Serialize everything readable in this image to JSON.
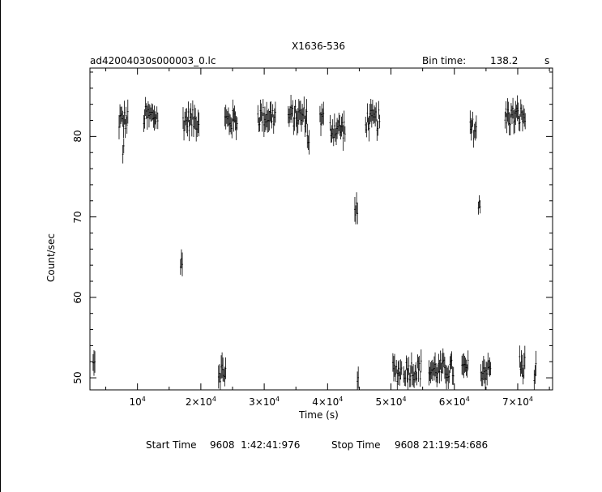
{
  "chart_data": {
    "type": "scatter",
    "title": "X1636-536",
    "file_label": "ad42004030s000003_0.lc",
    "bin_time_label": "Bin time:",
    "bin_time_value": "138.2",
    "bin_time_unit": "s",
    "xlabel": "Time (s)",
    "ylabel": "Count/sec",
    "xlim": [
      2500,
      75500
    ],
    "ylim": [
      48.5,
      88.5
    ],
    "x_ticks": [
      {
        "value": 10000,
        "label": "10",
        "exp": "4"
      },
      {
        "value": 20000,
        "label": "2×10",
        "exp": "4"
      },
      {
        "value": 30000,
        "label": "3×10",
        "exp": "4"
      },
      {
        "value": 40000,
        "label": "4×10",
        "exp": "4"
      },
      {
        "value": 50000,
        "label": "5×10",
        "exp": "4"
      },
      {
        "value": 60000,
        "label": "6×10",
        "exp": "4"
      },
      {
        "value": 70000,
        "label": "7×10",
        "exp": "4"
      }
    ],
    "y_ticks": [
      {
        "value": 50,
        "label": "50"
      },
      {
        "value": 60,
        "label": "60"
      },
      {
        "value": 70,
        "label": "70"
      },
      {
        "value": 80,
        "label": "80"
      }
    ],
    "segments": [
      {
        "x": [
          3000,
          3300
        ],
        "y": 51.5
      },
      {
        "x": [
          7100,
          8500
        ],
        "y": 82
      },
      {
        "x": [
          7700,
          7900
        ],
        "y": 78
      },
      {
        "x": [
          11000,
          13300
        ],
        "y": 82.5
      },
      {
        "x": [
          16800,
          17100
        ],
        "y": 64
      },
      {
        "x": [
          17200,
          19800
        ],
        "y": 82
      },
      {
        "x": [
          22800,
          24000
        ],
        "y": 50.8
      },
      {
        "x": [
          23800,
          25800
        ],
        "y": 82
      },
      {
        "x": [
          29000,
          31800
        ],
        "y": 82.5
      },
      {
        "x": [
          33800,
          36800
        ],
        "y": 82.5
      },
      {
        "x": [
          36800,
          37200
        ],
        "y": 80
      },
      {
        "x": [
          38800,
          39400
        ],
        "y": 82
      },
      {
        "x": [
          40400,
          42800
        ],
        "y": 81
      },
      {
        "x": [
          44300,
          44800
        ],
        "y": 70.5
      },
      {
        "x": [
          44700,
          44900
        ],
        "y": 49.5
      },
      {
        "x": [
          46000,
          48300
        ],
        "y": 82
      },
      {
        "x": [
          50300,
          51800
        ],
        "y": 50.8
      },
      {
        "x": [
          52000,
          54800
        ],
        "y": 51
      },
      {
        "x": [
          56000,
          60000
        ],
        "y": 51
      },
      {
        "x": [
          61200,
          62200
        ],
        "y": 51
      },
      {
        "x": [
          62500,
          63500
        ],
        "y": 81
      },
      {
        "x": [
          63800,
          64200
        ],
        "y": 71
      },
      {
        "x": [
          64200,
          65800
        ],
        "y": 51
      },
      {
        "x": [
          68000,
          71300
        ],
        "y": 82.5
      },
      {
        "x": [
          70300,
          71200
        ],
        "y": 51.5
      },
      {
        "x": [
          72600,
          73000
        ],
        "y": 50.5
      }
    ],
    "footer_start_label": "Start Time",
    "footer_start_value": "9608  1:42:41:976",
    "footer_stop_label": "Stop Time",
    "footer_stop_value": "9608 21:19:54:686"
  }
}
